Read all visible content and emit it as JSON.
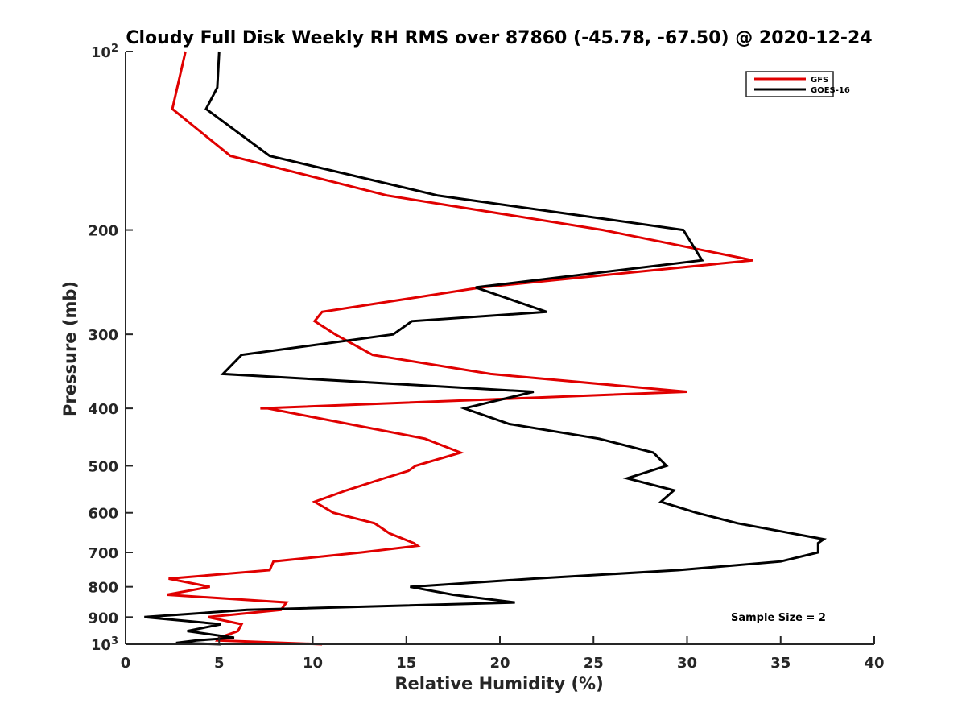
{
  "chart_data": {
    "type": "line",
    "title": "Cloudy Full Disk Weekly RH RMS over 87860 (-45.78, -67.50) @ 2020-12-24",
    "xlabel": "Relative Humidity (%)",
    "ylabel": "Pressure (mb)",
    "xlim": [
      0,
      40
    ],
    "ylim": [
      100,
      1000
    ],
    "y_scale": "log",
    "y_reversed": true,
    "grid": false,
    "legend_position": "top-right",
    "annotation": "Sample Size = 2",
    "x_ticks": [
      "0",
      "5",
      "10",
      "15",
      "20",
      "25",
      "30",
      "35",
      "40"
    ],
    "y_ticks": [
      {
        "value": 100,
        "base": "10",
        "exp": "2"
      },
      {
        "value": 200,
        "label": "200"
      },
      {
        "value": 300,
        "label": "300"
      },
      {
        "value": 400,
        "label": "400"
      },
      {
        "value": 500,
        "label": "500"
      },
      {
        "value": 600,
        "label": "600"
      },
      {
        "value": 700,
        "label": "700"
      },
      {
        "value": 800,
        "label": "800"
      },
      {
        "value": 900,
        "label": "900"
      },
      {
        "value": 1000,
        "base": "10",
        "exp": "3"
      }
    ],
    "series": [
      {
        "name": "GFS",
        "color": "#e00000",
        "points": [
          [
            3.2,
            100
          ],
          [
            2.5,
            125
          ],
          [
            5.6,
            150
          ],
          [
            14,
            175
          ],
          [
            25.5,
            200
          ],
          [
            33.5,
            225
          ],
          [
            19,
            250
          ],
          [
            10.5,
            275
          ],
          [
            10.5,
            275
          ],
          [
            10.1,
            285
          ],
          [
            11.2,
            300
          ],
          [
            13.2,
            325
          ],
          [
            19.5,
            350
          ],
          [
            30,
            375
          ],
          [
            7.2,
            400
          ],
          [
            7.6,
            400
          ],
          [
            16,
            450
          ],
          [
            17.9,
            475
          ],
          [
            15.5,
            500
          ],
          [
            15.1,
            510
          ],
          [
            13.8,
            525
          ],
          [
            11.8,
            550
          ],
          [
            10.1,
            575
          ],
          [
            11.1,
            600
          ],
          [
            13.3,
            625
          ],
          [
            14.1,
            650
          ],
          [
            15.4,
            675
          ],
          [
            15.6,
            682
          ],
          [
            12.6,
            700
          ],
          [
            7.9,
            725
          ],
          [
            7.7,
            750
          ],
          [
            2.3,
            775
          ],
          [
            4.5,
            800
          ],
          [
            2.2,
            825
          ],
          [
            8.6,
            850
          ],
          [
            8.3,
            875
          ],
          [
            4.4,
            900
          ],
          [
            6.2,
            925
          ],
          [
            6.0,
            950
          ],
          [
            5.0,
            975
          ],
          [
            4.9,
            985
          ],
          [
            10.5,
            1000
          ]
        ]
      },
      {
        "name": "GOES-16",
        "color": "#000000",
        "points": [
          [
            5.0,
            100
          ],
          [
            4.9,
            115
          ],
          [
            4.3,
            125
          ],
          [
            7.7,
            150
          ],
          [
            16.7,
            175
          ],
          [
            29.8,
            200
          ],
          [
            30.8,
            225
          ],
          [
            18.7,
            250
          ],
          [
            22.5,
            275
          ],
          [
            15.3,
            285
          ],
          [
            14.3,
            300
          ],
          [
            6.2,
            325
          ],
          [
            5.2,
            350
          ],
          [
            21.8,
            375
          ],
          [
            18.1,
            400
          ],
          [
            20.5,
            425
          ],
          [
            25.3,
            450
          ],
          [
            28.2,
            475
          ],
          [
            28.9,
            500
          ],
          [
            26.8,
            525
          ],
          [
            29.3,
            550
          ],
          [
            28.6,
            575
          ],
          [
            30.5,
            600
          ],
          [
            32.7,
            625
          ],
          [
            35.6,
            650
          ],
          [
            37.3,
            665
          ],
          [
            37.0,
            675
          ],
          [
            37.0,
            700
          ],
          [
            35.0,
            725
          ],
          [
            29.5,
            750
          ],
          [
            21.8,
            775
          ],
          [
            15.2,
            800
          ],
          [
            17.5,
            825
          ],
          [
            20.8,
            850
          ],
          [
            6.5,
            875
          ],
          [
            1.0,
            900
          ],
          [
            5.1,
            925
          ],
          [
            3.3,
            950
          ],
          [
            5.8,
            975
          ],
          [
            3.8,
            985
          ],
          [
            2.7,
            995
          ],
          [
            5.1,
            1000
          ]
        ]
      }
    ]
  }
}
